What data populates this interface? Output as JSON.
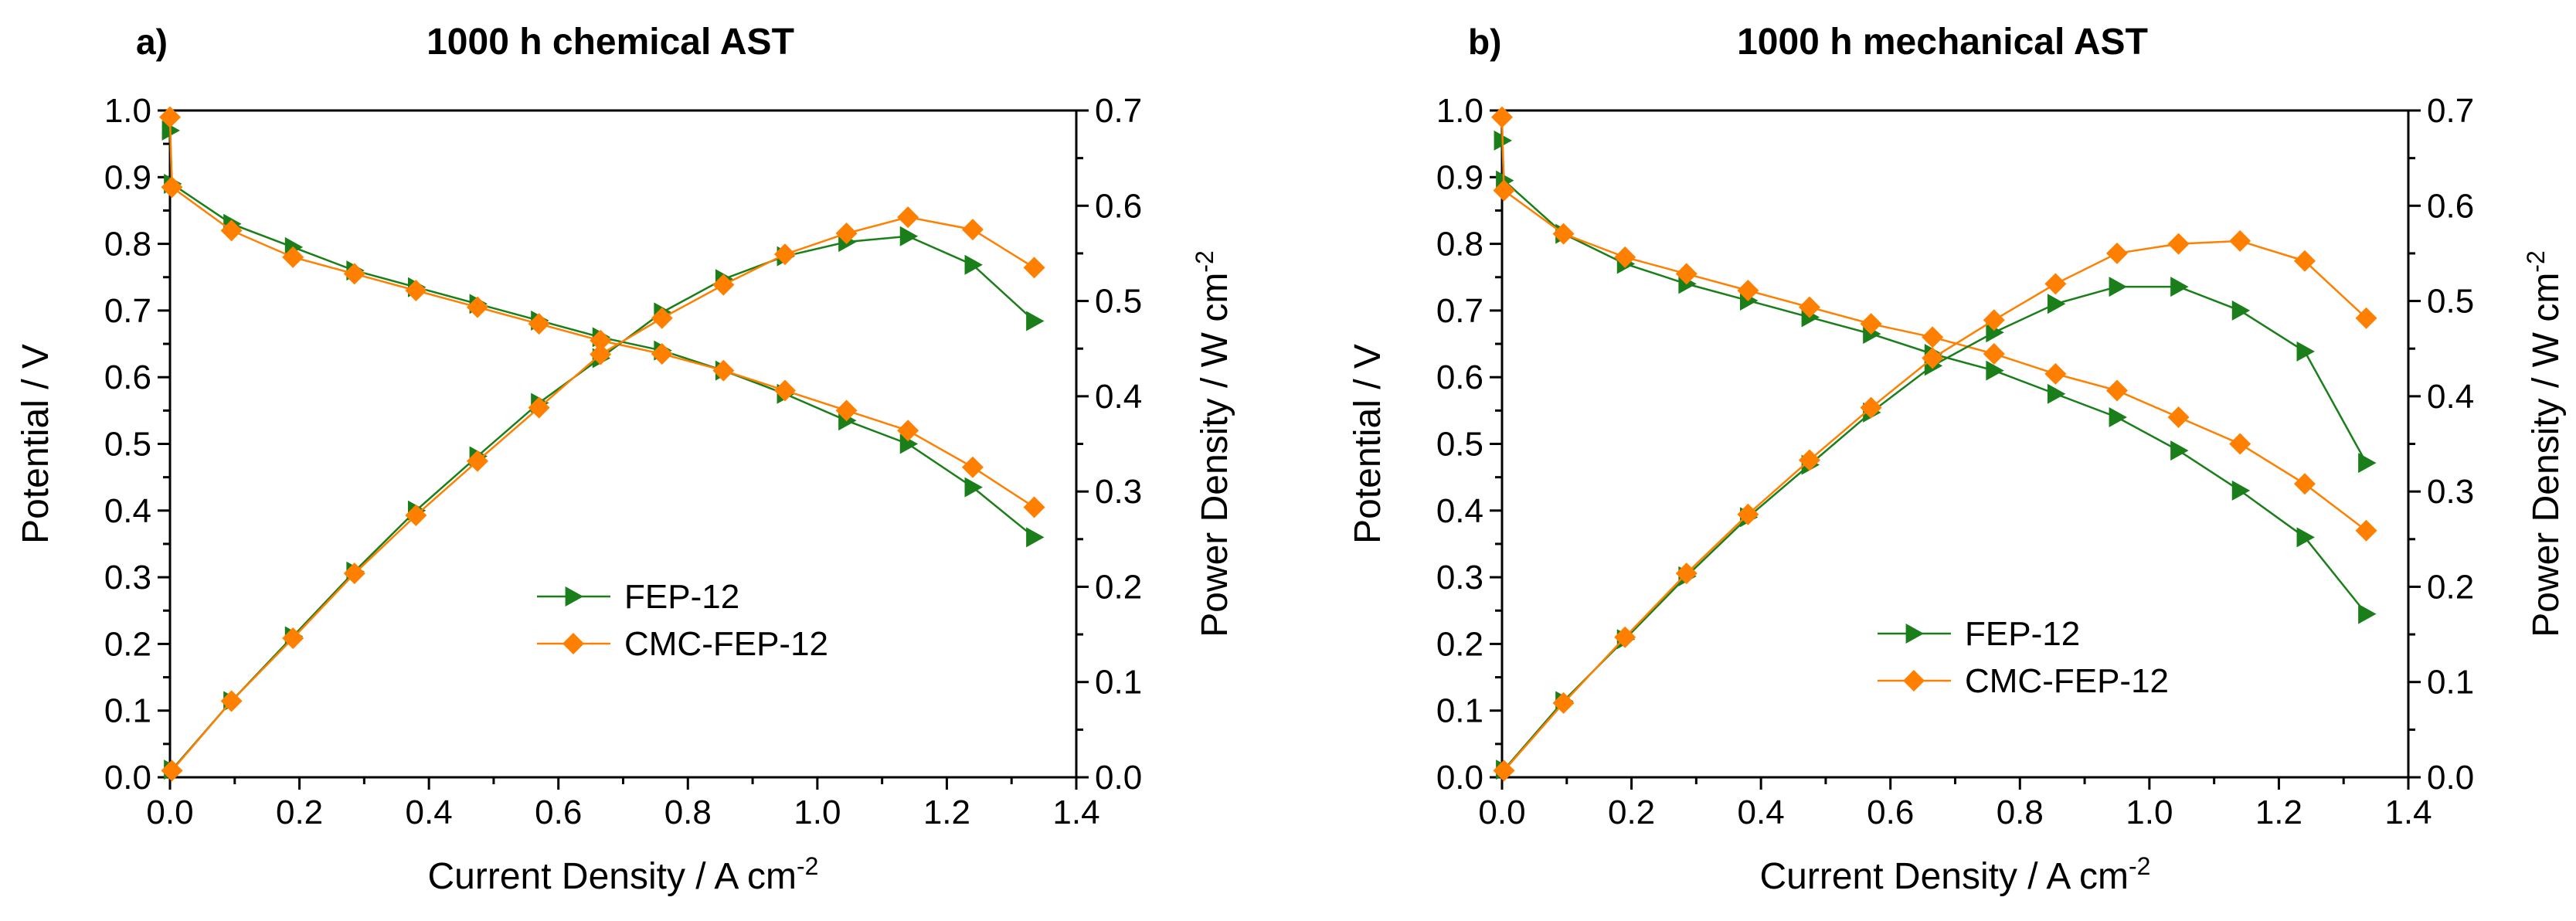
{
  "chart_data": [
    {
      "type": "line",
      "panel_label": "a)",
      "title": "1000 h chemical AST",
      "xlabel": "Current Density / A cm",
      "xlabel_sup": "-2",
      "ylabel": "Potential / V",
      "y2label": "Power Density / W cm",
      "y2label_sup": "-2",
      "xlim": [
        0.0,
        1.4
      ],
      "ylim": [
        0.0,
        1.0
      ],
      "y2lim": [
        0.0,
        0.7
      ],
      "xticks": [
        "0.0",
        "0.2",
        "0.4",
        "0.6",
        "0.8",
        "1.0",
        "1.2",
        "1.4"
      ],
      "yticks": [
        "0.0",
        "0.1",
        "0.2",
        "0.3",
        "0.4",
        "0.5",
        "0.6",
        "0.7",
        "0.8",
        "0.9",
        "1.0"
      ],
      "y2ticks": [
        "0.0",
        "0.1",
        "0.2",
        "0.3",
        "0.4",
        "0.5",
        "0.6",
        "0.7"
      ],
      "grid": false,
      "legend": [
        "FEP-12",
        "CMC-FEP-12"
      ],
      "legend_position": "center",
      "series": [
        {
          "name": "FEP-12",
          "axis": "left",
          "color": "#1a7f1a",
          "marker": "triangle-right",
          "x": [
            0.0,
            0.003,
            0.095,
            0.19,
            0.285,
            0.38,
            0.475,
            0.57,
            0.665,
            0.76,
            0.855,
            0.95,
            1.045,
            1.14,
            1.24,
            1.335
          ],
          "y": [
            0.97,
            0.89,
            0.83,
            0.795,
            0.76,
            0.735,
            0.71,
            0.685,
            0.66,
            0.64,
            0.61,
            0.575,
            0.535,
            0.5,
            0.435,
            0.36
          ]
        },
        {
          "name": "CMC-FEP-12",
          "axis": "left",
          "color": "#ff8000",
          "marker": "diamond",
          "x": [
            0.0,
            0.003,
            0.095,
            0.19,
            0.285,
            0.38,
            0.475,
            0.57,
            0.665,
            0.76,
            0.855,
            0.95,
            1.045,
            1.14,
            1.24,
            1.335
          ],
          "y": [
            0.99,
            0.885,
            0.82,
            0.78,
            0.755,
            0.73,
            0.705,
            0.68,
            0.655,
            0.635,
            0.61,
            0.58,
            0.55,
            0.52,
            0.465,
            0.405
          ]
        },
        {
          "name": "FEP-12",
          "axis": "right",
          "color": "#1a7f1a",
          "marker": "triangle-right",
          "x": [
            0.003,
            0.095,
            0.19,
            0.285,
            0.38,
            0.475,
            0.57,
            0.665,
            0.76,
            0.855,
            0.95,
            1.045,
            1.14,
            1.24,
            1.335
          ],
          "y": [
            0.008,
            0.08,
            0.148,
            0.216,
            0.28,
            0.337,
            0.393,
            0.44,
            0.488,
            0.523,
            0.547,
            0.562,
            0.568,
            0.538,
            0.479
          ]
        },
        {
          "name": "CMC-FEP-12",
          "axis": "right",
          "color": "#ff8000",
          "marker": "diamond",
          "x": [
            0.003,
            0.095,
            0.19,
            0.285,
            0.38,
            0.475,
            0.57,
            0.665,
            0.76,
            0.855,
            0.95,
            1.045,
            1.14,
            1.24,
            1.335
          ],
          "y": [
            0.007,
            0.08,
            0.146,
            0.214,
            0.275,
            0.332,
            0.388,
            0.444,
            0.482,
            0.517,
            0.549,
            0.571,
            0.588,
            0.575,
            0.535
          ]
        }
      ]
    },
    {
      "type": "line",
      "panel_label": "b)",
      "title": "1000 h mechanical AST",
      "xlabel": "Current Density / A cm",
      "xlabel_sup": "-2",
      "ylabel": "Potential / V",
      "y2label": "Power Density / W cm",
      "y2label_sup": "-2",
      "xlim": [
        0.0,
        1.4
      ],
      "ylim": [
        0.0,
        1.0
      ],
      "y2lim": [
        0.0,
        0.7
      ],
      "xticks": [
        "0.0",
        "0.2",
        "0.4",
        "0.6",
        "0.8",
        "1.0",
        "1.2",
        "1.4"
      ],
      "yticks": [
        "0.0",
        "0.1",
        "0.2",
        "0.3",
        "0.4",
        "0.5",
        "0.6",
        "0.7",
        "0.8",
        "0.9",
        "1.0"
      ],
      "y2ticks": [
        "0.0",
        "0.1",
        "0.2",
        "0.3",
        "0.4",
        "0.5",
        "0.6",
        "0.7"
      ],
      "grid": false,
      "legend": [
        "FEP-12",
        "CMC-FEP-12"
      ],
      "legend_position": "bottom-center",
      "series": [
        {
          "name": "FEP-12",
          "axis": "left",
          "color": "#1a7f1a",
          "marker": "triangle-right",
          "x": [
            0.0,
            0.003,
            0.095,
            0.19,
            0.285,
            0.38,
            0.475,
            0.57,
            0.665,
            0.76,
            0.855,
            0.95,
            1.045,
            1.14,
            1.24,
            1.335
          ],
          "y": [
            0.955,
            0.895,
            0.815,
            0.77,
            0.74,
            0.715,
            0.69,
            0.665,
            0.635,
            0.61,
            0.575,
            0.54,
            0.49,
            0.43,
            0.36,
            0.245
          ]
        },
        {
          "name": "CMC-FEP-12",
          "axis": "left",
          "color": "#ff8000",
          "marker": "diamond",
          "x": [
            0.0,
            0.003,
            0.095,
            0.19,
            0.285,
            0.38,
            0.475,
            0.57,
            0.665,
            0.76,
            0.855,
            0.95,
            1.045,
            1.14,
            1.24,
            1.335
          ],
          "y": [
            0.99,
            0.88,
            0.815,
            0.78,
            0.755,
            0.73,
            0.705,
            0.68,
            0.66,
            0.635,
            0.605,
            0.58,
            0.54,
            0.5,
            0.44,
            0.37
          ]
        },
        {
          "name": "FEP-12",
          "axis": "right",
          "color": "#1a7f1a",
          "marker": "triangle-right",
          "x": [
            0.003,
            0.095,
            0.19,
            0.285,
            0.38,
            0.475,
            0.57,
            0.665,
            0.76,
            0.855,
            0.95,
            1.045,
            1.14,
            1.24,
            1.335
          ],
          "y": [
            0.008,
            0.08,
            0.145,
            0.211,
            0.273,
            0.328,
            0.383,
            0.432,
            0.467,
            0.497,
            0.515,
            0.515,
            0.49,
            0.447,
            0.33
          ]
        },
        {
          "name": "CMC-FEP-12",
          "axis": "right",
          "color": "#ff8000",
          "marker": "diamond",
          "x": [
            0.003,
            0.095,
            0.19,
            0.285,
            0.38,
            0.475,
            0.57,
            0.665,
            0.76,
            0.855,
            0.95,
            1.045,
            1.14,
            1.24,
            1.335
          ],
          "y": [
            0.007,
            0.078,
            0.147,
            0.214,
            0.276,
            0.333,
            0.388,
            0.44,
            0.48,
            0.518,
            0.55,
            0.56,
            0.563,
            0.542,
            0.482
          ]
        }
      ]
    }
  ]
}
